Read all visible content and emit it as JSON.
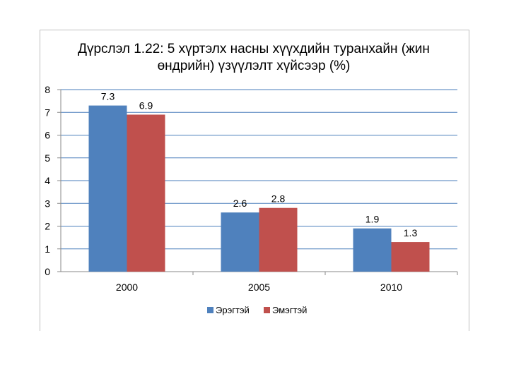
{
  "chart_data": {
    "type": "bar",
    "title_line1": "Дүрслэл 1.22: 5 хүртэлх насны хүүхдийн туранхайн (жин",
    "title_line2": "өндрийн) үзүүлэлт хүйсээр (%)",
    "categories": [
      "2000",
      "2005",
      "2010"
    ],
    "series": [
      {
        "name": "Эрэгтэй",
        "color": "#4f81bd",
        "values": [
          7.3,
          2.6,
          1.9
        ]
      },
      {
        "name": "Эмэгтэй",
        "color": "#c0504d",
        "values": [
          6.9,
          2.8,
          1.3
        ]
      }
    ],
    "ylim": [
      0,
      8
    ],
    "yticks": [
      0,
      1,
      2,
      3,
      4,
      5,
      6,
      7,
      8
    ],
    "grid": true,
    "legend_position": "bottom"
  }
}
